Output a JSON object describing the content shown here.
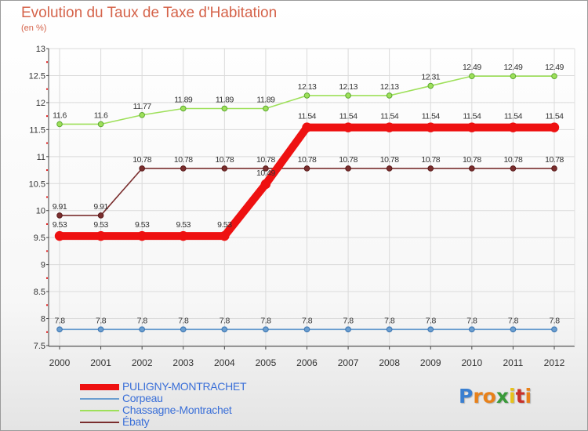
{
  "chart_data": {
    "type": "line",
    "title": "Evolution du Taux de Taxe d'Habitation",
    "ylabel": "(en %)",
    "xlabel": "",
    "ylim": [
      7.5,
      13
    ],
    "yticks": [
      "7.5",
      "8",
      "8.5",
      "9",
      "9.5",
      "10",
      "10.5",
      "11",
      "11.5",
      "12",
      "12.5",
      "13"
    ],
    "categories": [
      "2000",
      "2001",
      "2002",
      "2003",
      "2004",
      "2005",
      "2006",
      "2007",
      "2008",
      "2009",
      "2010",
      "2011",
      "2012"
    ],
    "series": [
      {
        "name": "Corpeau",
        "color": "#6a9ed0",
        "values": [
          7.8,
          7.8,
          7.8,
          7.8,
          7.8,
          7.8,
          7.8,
          7.8,
          7.8,
          7.8,
          7.8,
          7.8,
          7.8
        ],
        "labels": [
          "7.8",
          "7.8",
          "7.8",
          "7.8",
          "7.8",
          "7.8",
          "7.8",
          "7.8",
          "7.8",
          "7.8",
          "7.8",
          "7.8",
          "7.8"
        ]
      },
      {
        "name": "Chassagne-Montrachet",
        "color": "#9ee05a",
        "values": [
          11.6,
          11.6,
          11.77,
          11.89,
          11.89,
          11.89,
          12.13,
          12.13,
          12.13,
          12.31,
          12.49,
          12.49,
          12.49
        ],
        "labels": [
          "11.6",
          "11.6",
          "11.77",
          "11.89",
          "11.89",
          "11.89",
          "12.13",
          "12.13",
          "12.13",
          "12.31",
          "12.49",
          "12.49",
          "12.49"
        ]
      },
      {
        "name": "Ébaty",
        "color": "#7a2e2e",
        "values": [
          9.91,
          9.91,
          10.78,
          10.78,
          10.78,
          10.78,
          10.78,
          10.78,
          10.78,
          10.78,
          10.78,
          10.78,
          10.78
        ],
        "labels": [
          "9.91",
          "9.91",
          "10.78",
          "10.78",
          "10.78",
          "10.78",
          "10.78",
          "10.78",
          "10.78",
          "10.78",
          "10.78",
          "10.78",
          "10.78"
        ]
      },
      {
        "name": "PULIGNY-MONTRACHET",
        "color": "#ee1111",
        "values": [
          9.53,
          9.53,
          9.53,
          9.53,
          9.53,
          10.49,
          11.54,
          11.54,
          11.54,
          11.54,
          11.54,
          11.54,
          11.54
        ],
        "labels": [
          "9.53",
          "9.53",
          "9.53",
          "9.53",
          "9.53",
          "10.49",
          "11.54",
          "11.54",
          "11.54",
          "11.54",
          "11.54",
          "11.54",
          "11.54"
        ]
      }
    ],
    "legend": [
      "PULIGNY-MONTRACHET",
      "Corpeau",
      "Chassagne-Montrachet",
      "Ébaty"
    ],
    "legend_position": "bottom-left"
  },
  "header": {
    "title": "Evolution du Taux de Taxe d'Habitation",
    "unit": "(en %)"
  },
  "logo": {
    "letters": [
      "P",
      "r",
      "o",
      "x",
      "i",
      "t",
      "i"
    ],
    "colors": [
      "#3a7fd0",
      "#e8811a",
      "#e8811a",
      "#3a9a3a",
      "#e8c21a",
      "#c8302a",
      "#e8811a"
    ]
  }
}
